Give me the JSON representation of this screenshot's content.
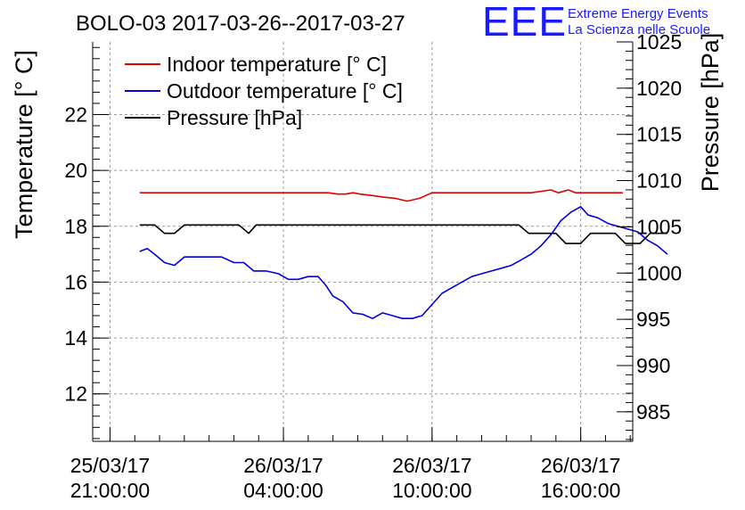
{
  "chart_data": {
    "type": "line",
    "title": "BOLO-03 2017-03-26--2017-03-27",
    "logo": {
      "text": "EEE",
      "line1": "Extreme Energy Events",
      "line2": "La Scienza nelle Scuole",
      "color": "#1a1aff"
    },
    "ylabel_left": "Temperature [° C]",
    "ylabel_right": "Pressure [hPa]",
    "left_axis": {
      "range": [
        10.3,
        24.6
      ],
      "major_ticks": [
        12,
        14,
        16,
        18,
        20,
        22
      ],
      "minor_step": 0.4
    },
    "right_axis": {
      "range": [
        981.8,
        1025
      ],
      "major_ticks": [
        985,
        990,
        995,
        1000,
        1005,
        1010,
        1015,
        1020,
        1025
      ],
      "minor_step": 1
    },
    "x_axis": {
      "range_hours": [
        -0.7,
        21.1
      ],
      "ticks": [
        {
          "hour": 0,
          "date": "25/03/17",
          "time": "21:00:00"
        },
        {
          "hour": 7,
          "date": "26/03/17",
          "time": "04:00:00"
        },
        {
          "hour": 13,
          "date": "26/03/17",
          "time": "10:00:00"
        },
        {
          "hour": 19,
          "date": "26/03/17",
          "time": "16:00:00"
        }
      ],
      "minor_step": 1
    },
    "grid": true,
    "legend_position": "top-left",
    "series": [
      {
        "name": "Indoor temperature [° C]",
        "axis": "left",
        "color": "#e00000",
        "points": [
          [
            1.2,
            19.2
          ],
          [
            2,
            19.2
          ],
          [
            4,
            19.2
          ],
          [
            6,
            19.2
          ],
          [
            8,
            19.2
          ],
          [
            8.8,
            19.2
          ],
          [
            9.2,
            19.15
          ],
          [
            9.5,
            19.15
          ],
          [
            9.8,
            19.2
          ],
          [
            10.1,
            19.15
          ],
          [
            10.6,
            19.1
          ],
          [
            11,
            19.05
          ],
          [
            11.5,
            19.0
          ],
          [
            12,
            18.9
          ],
          [
            12.5,
            19.0
          ],
          [
            13,
            19.2
          ],
          [
            14,
            19.2
          ],
          [
            16,
            19.2
          ],
          [
            17,
            19.2
          ],
          [
            17.8,
            19.3
          ],
          [
            18.1,
            19.2
          ],
          [
            18.5,
            19.3
          ],
          [
            18.8,
            19.2
          ],
          [
            20,
            19.2
          ],
          [
            20.7,
            19.2
          ]
        ]
      },
      {
        "name": "Outdoor temperature [° C]",
        "axis": "left",
        "color": "#0000e0",
        "points": [
          [
            1.2,
            17.1
          ],
          [
            1.5,
            17.2
          ],
          [
            1.8,
            17.0
          ],
          [
            2.2,
            16.7
          ],
          [
            2.6,
            16.6
          ],
          [
            3,
            16.9
          ],
          [
            3.5,
            16.9
          ],
          [
            4,
            16.9
          ],
          [
            4.5,
            16.9
          ],
          [
            5,
            16.7
          ],
          [
            5.4,
            16.7
          ],
          [
            5.8,
            16.4
          ],
          [
            6.3,
            16.4
          ],
          [
            6.8,
            16.3
          ],
          [
            7.2,
            16.1
          ],
          [
            7.6,
            16.1
          ],
          [
            8,
            16.2
          ],
          [
            8.4,
            16.2
          ],
          [
            8.7,
            15.9
          ],
          [
            9,
            15.5
          ],
          [
            9.4,
            15.3
          ],
          [
            9.8,
            14.9
          ],
          [
            10.2,
            14.85
          ],
          [
            10.6,
            14.7
          ],
          [
            11,
            14.9
          ],
          [
            11.4,
            14.8
          ],
          [
            11.8,
            14.7
          ],
          [
            12.2,
            14.7
          ],
          [
            12.6,
            14.8
          ],
          [
            13,
            15.2
          ],
          [
            13.4,
            15.6
          ],
          [
            13.8,
            15.8
          ],
          [
            14.2,
            16.0
          ],
          [
            14.6,
            16.2
          ],
          [
            15,
            16.3
          ],
          [
            15.4,
            16.4
          ],
          [
            15.8,
            16.5
          ],
          [
            16.2,
            16.6
          ],
          [
            16.6,
            16.8
          ],
          [
            17,
            17.0
          ],
          [
            17.4,
            17.3
          ],
          [
            17.8,
            17.7
          ],
          [
            18.2,
            18.2
          ],
          [
            18.6,
            18.5
          ],
          [
            19,
            18.7
          ],
          [
            19.3,
            18.4
          ],
          [
            19.7,
            18.3
          ],
          [
            20.1,
            18.1
          ],
          [
            20.5,
            18.0
          ],
          [
            20.9,
            17.9
          ],
          [
            21.3,
            17.8
          ],
          [
            21.7,
            17.5
          ],
          [
            22.1,
            17.3
          ],
          [
            22.5,
            17.0
          ]
        ]
      },
      {
        "name": "Pressure [hPa]",
        "axis": "right",
        "color": "#000000",
        "points": [
          [
            1.2,
            1005.2
          ],
          [
            1.8,
            1005.2
          ],
          [
            2.2,
            1004.3
          ],
          [
            2.6,
            1004.3
          ],
          [
            3,
            1005.2
          ],
          [
            5.2,
            1005.2
          ],
          [
            5.6,
            1004.3
          ],
          [
            5.9,
            1005.2
          ],
          [
            8,
            1005.2
          ],
          [
            10,
            1005.2
          ],
          [
            12,
            1005.2
          ],
          [
            14,
            1005.2
          ],
          [
            16,
            1005.2
          ],
          [
            16.5,
            1005.2
          ],
          [
            16.9,
            1004.3
          ],
          [
            17.5,
            1004.3
          ],
          [
            18,
            1004.3
          ],
          [
            18.4,
            1003.2
          ],
          [
            19,
            1003.2
          ],
          [
            19.4,
            1004.3
          ],
          [
            20,
            1004.3
          ],
          [
            20.4,
            1004.3
          ],
          [
            20.8,
            1003.2
          ],
          [
            21.4,
            1003.2
          ],
          [
            21.8,
            1004.3
          ],
          [
            22.5,
            1004.3
          ]
        ]
      }
    ]
  }
}
